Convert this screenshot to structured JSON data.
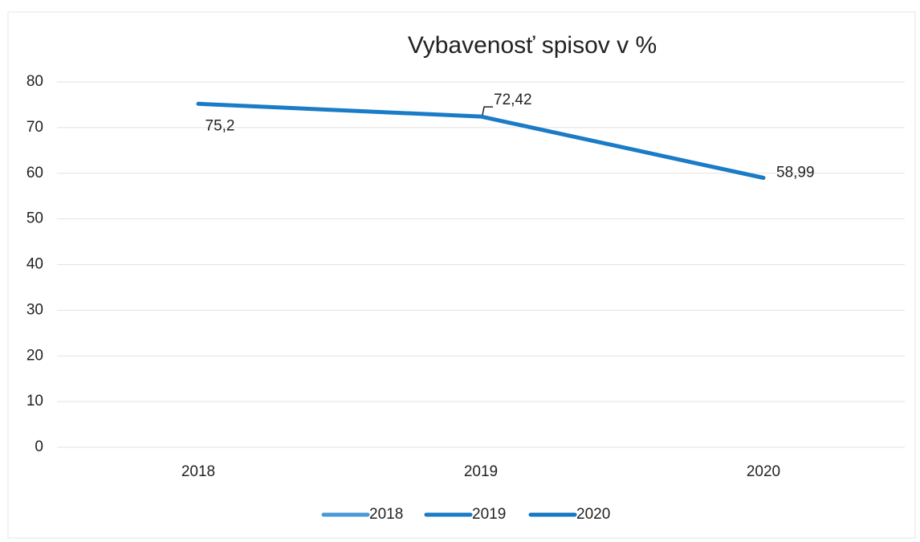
{
  "chart_data": {
    "type": "line",
    "title": "Vybavenosť spisov v %",
    "categories": [
      "2018",
      "2019",
      "2020"
    ],
    "values": [
      75.2,
      72.42,
      58.99
    ],
    "value_labels": [
      "75,2",
      "72,42",
      "58,99"
    ],
    "color": "#1a7bc6",
    "legend_colors": [
      "#4a9ad6",
      "#1a7bc6",
      "#1677c2"
    ],
    "ylim": [
      0,
      80
    ],
    "yticks": [
      0,
      10,
      20,
      30,
      40,
      50,
      60,
      70,
      80
    ],
    "grid": true
  }
}
